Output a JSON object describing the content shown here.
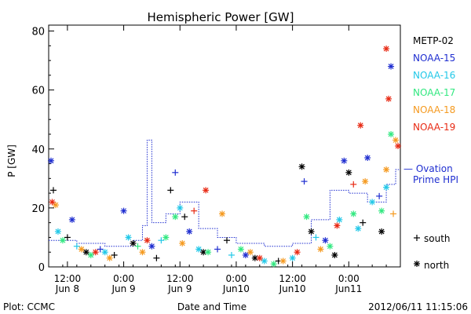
{
  "chart_data": {
    "type": "scatter",
    "title": "Hemispheric Power [GW]",
    "ylabel": "P [GW]",
    "xlabel": "Date and Time",
    "ylim": [
      0,
      82
    ],
    "yticks": [
      0,
      20,
      40,
      60,
      80
    ],
    "xlim": [
      "2012-06-08T08:00",
      "2012-06-11T11:00"
    ],
    "xticks": [
      {
        "at": "2012-06-08T12:00",
        "time": "12:00",
        "date": "Jun 8"
      },
      {
        "at": "2012-06-09T00:00",
        "time": "0:00",
        "date": "Jun 9"
      },
      {
        "at": "2012-06-09T12:00",
        "time": "12:00",
        "date": "Jun 9"
      },
      {
        "at": "2012-06-10T00:00",
        "time": "0:00",
        "date": "Jun10"
      },
      {
        "at": "2012-06-10T12:00",
        "time": "12:00",
        "date": "Jun10"
      },
      {
        "at": "2012-06-11T00:00",
        "time": "0:00",
        "date": "Jun11"
      }
    ],
    "legend": {
      "position": "right",
      "symbol_south": "south",
      "symbol_north": "north"
    },
    "series": [
      {
        "name": "METP-02",
        "color": "#000000",
        "points": [
          [
            "2012-06-08T09:00",
            26,
            "s"
          ],
          [
            "2012-06-08T12:00",
            10,
            "s"
          ],
          [
            "2012-06-08T16:00",
            5,
            "n"
          ],
          [
            "2012-06-08T22:00",
            4,
            "s"
          ],
          [
            "2012-06-09T02:00",
            8,
            "n"
          ],
          [
            "2012-06-09T07:00",
            3,
            "s"
          ],
          [
            "2012-06-09T10:00",
            26,
            "s"
          ],
          [
            "2012-06-09T13:00",
            17,
            "s"
          ],
          [
            "2012-06-09T17:00",
            5,
            "n"
          ],
          [
            "2012-06-09T22:00",
            9,
            "s"
          ],
          [
            "2012-06-10T04:00",
            3,
            "n"
          ],
          [
            "2012-06-10T09:00",
            2,
            "s"
          ],
          [
            "2012-06-10T14:00",
            34,
            "n"
          ],
          [
            "2012-06-10T16:00",
            12,
            "n"
          ],
          [
            "2012-06-10T21:00",
            4,
            "n"
          ],
          [
            "2012-06-11T00:00",
            32,
            "n"
          ],
          [
            "2012-06-11T03:00",
            15,
            "s"
          ],
          [
            "2012-06-11T07:00",
            12,
            "n"
          ]
        ]
      },
      {
        "name": "NOAA-15",
        "color": "#1f2ed0",
        "points": [
          [
            "2012-06-08T08:30",
            36,
            "n"
          ],
          [
            "2012-06-08T13:00",
            16,
            "n"
          ],
          [
            "2012-06-08T19:00",
            6,
            "s"
          ],
          [
            "2012-06-09T00:00",
            19,
            "n"
          ],
          [
            "2012-06-09T06:00",
            7,
            "n"
          ],
          [
            "2012-06-09T11:00",
            32,
            "s"
          ],
          [
            "2012-06-09T14:00",
            12,
            "n"
          ],
          [
            "2012-06-09T20:00",
            6,
            "s"
          ],
          [
            "2012-06-10T02:00",
            4,
            "n"
          ],
          [
            "2012-06-10T14:30",
            29,
            "s"
          ],
          [
            "2012-06-10T19:00",
            9,
            "n"
          ],
          [
            "2012-06-10T23:00",
            36,
            "n"
          ],
          [
            "2012-06-11T04:00",
            37,
            "n"
          ],
          [
            "2012-06-11T06:30",
            24,
            "s"
          ],
          [
            "2012-06-11T09:00",
            68,
            "n"
          ]
        ]
      },
      {
        "name": "NOAA-16",
        "color": "#22c8e8",
        "points": [
          [
            "2012-06-08T10:00",
            12,
            "n"
          ],
          [
            "2012-06-08T14:00",
            7,
            "s"
          ],
          [
            "2012-06-08T20:00",
            5,
            "n"
          ],
          [
            "2012-06-09T01:00",
            10,
            "n"
          ],
          [
            "2012-06-09T08:00",
            9,
            "s"
          ],
          [
            "2012-06-09T12:00",
            20,
            "n"
          ],
          [
            "2012-06-09T16:00",
            6,
            "n"
          ],
          [
            "2012-06-09T23:00",
            4,
            "s"
          ],
          [
            "2012-06-10T06:00",
            2,
            "n"
          ],
          [
            "2012-06-10T12:00",
            3,
            "n"
          ],
          [
            "2012-06-10T17:00",
            10,
            "s"
          ],
          [
            "2012-06-10T22:00",
            16,
            "n"
          ],
          [
            "2012-06-11T02:00",
            13,
            "n"
          ],
          [
            "2012-06-11T05:00",
            22,
            "n"
          ],
          [
            "2012-06-11T08:00",
            27,
            "n"
          ]
        ]
      },
      {
        "name": "NOAA-17",
        "color": "#32e880",
        "points": [
          [
            "2012-06-08T11:00",
            9,
            "n"
          ],
          [
            "2012-06-08T17:00",
            4,
            "n"
          ],
          [
            "2012-06-09T03:00",
            7,
            "s"
          ],
          [
            "2012-06-09T09:00",
            10,
            "n"
          ],
          [
            "2012-06-09T11:00",
            17,
            "n"
          ],
          [
            "2012-06-09T18:00",
            5,
            "n"
          ],
          [
            "2012-06-10T01:00",
            6,
            "n"
          ],
          [
            "2012-06-10T08:00",
            1,
            "n"
          ],
          [
            "2012-06-10T15:00",
            17,
            "n"
          ],
          [
            "2012-06-10T20:00",
            7,
            "n"
          ],
          [
            "2012-06-11T01:00",
            18,
            "n"
          ],
          [
            "2012-06-11T07:00",
            19,
            "n"
          ],
          [
            "2012-06-11T09:00",
            45,
            "n"
          ]
        ]
      },
      {
        "name": "NOAA-18",
        "color": "#f59a20",
        "points": [
          [
            "2012-06-08T09:30",
            21,
            "n"
          ],
          [
            "2012-06-08T15:00",
            6,
            "n"
          ],
          [
            "2012-06-08T21:00",
            3,
            "n"
          ],
          [
            "2012-06-09T04:00",
            5,
            "n"
          ],
          [
            "2012-06-09T12:30",
            8,
            "n"
          ],
          [
            "2012-06-09T21:00",
            18,
            "n"
          ],
          [
            "2012-06-10T03:00",
            5,
            "n"
          ],
          [
            "2012-06-10T10:00",
            2,
            "n"
          ],
          [
            "2012-06-10T18:00",
            6,
            "n"
          ],
          [
            "2012-06-11T03:30",
            29,
            "n"
          ],
          [
            "2012-06-11T08:00",
            33,
            "n"
          ],
          [
            "2012-06-11T09:30",
            18,
            "s"
          ],
          [
            "2012-06-11T10:00",
            43,
            "n"
          ]
        ]
      },
      {
        "name": "NOAA-19",
        "color": "#e82a14",
        "points": [
          [
            "2012-06-08T08:45",
            22,
            "n"
          ],
          [
            "2012-06-08T18:00",
            5,
            "n"
          ],
          [
            "2012-06-09T05:00",
            9,
            "n"
          ],
          [
            "2012-06-09T15:00",
            19,
            "s"
          ],
          [
            "2012-06-09T17:30",
            26,
            "n"
          ],
          [
            "2012-06-10T05:00",
            3,
            "n"
          ],
          [
            "2012-06-10T13:00",
            5,
            "n"
          ],
          [
            "2012-06-10T21:30",
            14,
            "n"
          ],
          [
            "2012-06-11T01:00",
            28,
            "s"
          ],
          [
            "2012-06-11T02:30",
            48,
            "n"
          ],
          [
            "2012-06-11T08:00",
            74,
            "n"
          ],
          [
            "2012-06-11T08:30",
            57,
            "n"
          ],
          [
            "2012-06-11T10:30",
            41,
            "n"
          ]
        ]
      }
    ],
    "ovation": {
      "name": "— Ovation Prime HPI",
      "color": "#1f2ed0",
      "steps": [
        [
          "2012-06-08T08:00",
          9
        ],
        [
          "2012-06-08T14:00",
          8
        ],
        [
          "2012-06-08T20:00",
          7
        ],
        [
          "2012-06-09T02:00",
          9
        ],
        [
          "2012-06-09T04:00",
          14
        ],
        [
          "2012-06-09T05:00",
          43
        ],
        [
          "2012-06-09T06:00",
          15
        ],
        [
          "2012-06-09T09:00",
          18
        ],
        [
          "2012-06-09T12:00",
          22
        ],
        [
          "2012-06-09T16:00",
          13
        ],
        [
          "2012-06-09T20:00",
          10
        ],
        [
          "2012-06-10T00:00",
          8
        ],
        [
          "2012-06-10T06:00",
          7
        ],
        [
          "2012-06-10T12:00",
          8
        ],
        [
          "2012-06-10T16:00",
          16
        ],
        [
          "2012-06-10T20:00",
          26
        ],
        [
          "2012-06-11T00:00",
          25
        ],
        [
          "2012-06-11T04:00",
          22
        ],
        [
          "2012-06-11T08:00",
          28
        ],
        [
          "2012-06-11T10:00",
          33
        ]
      ]
    }
  },
  "footer": {
    "plot_credit": "Plot: CCMC",
    "timestamp": "2012/06/11 11:15:06"
  }
}
